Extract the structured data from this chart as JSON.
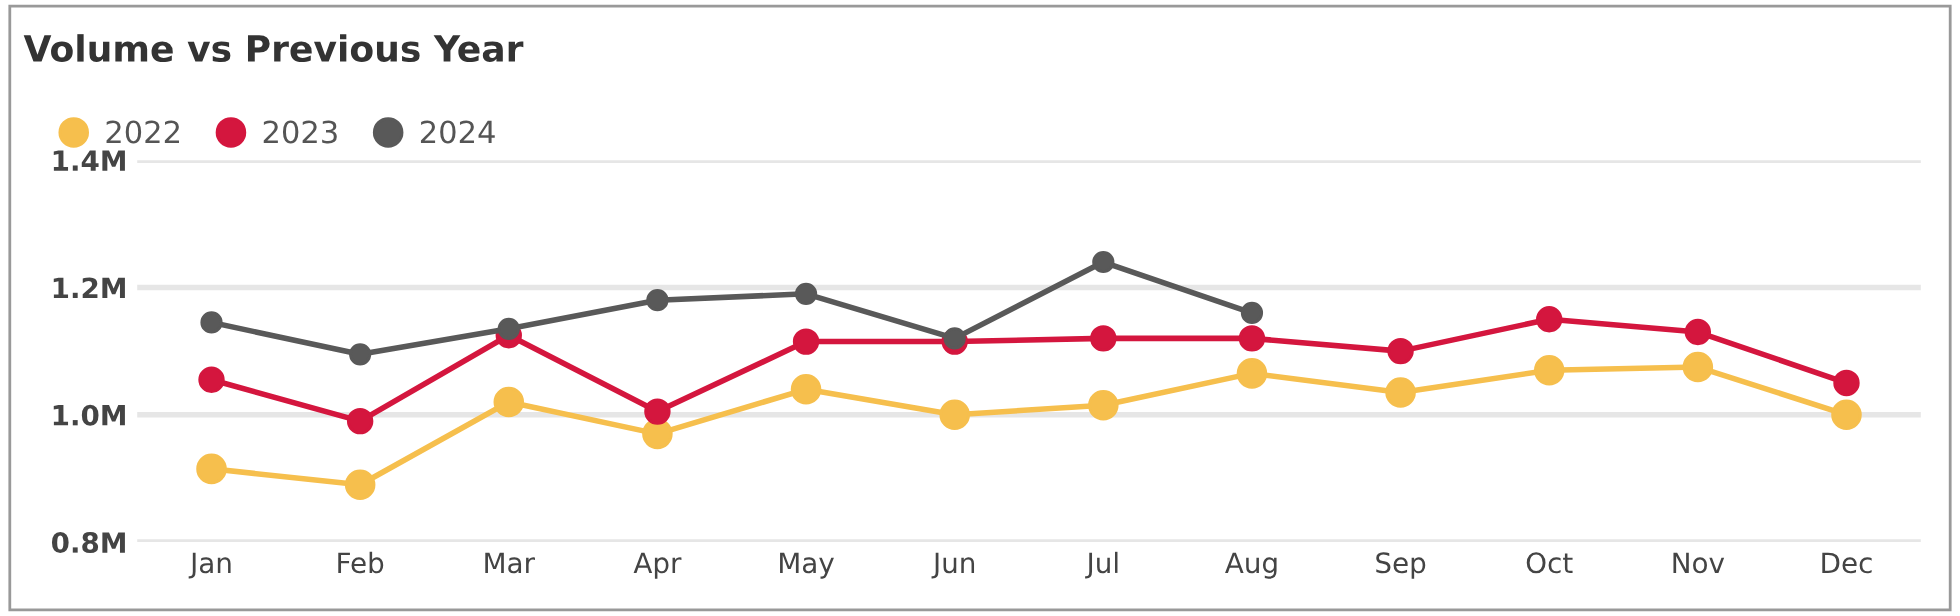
{
  "chart_data": {
    "type": "line",
    "title": "Volume vs Previous Year",
    "categories": [
      "Jan",
      "Feb",
      "Mar",
      "Apr",
      "May",
      "Jun",
      "Jul",
      "Aug",
      "Sep",
      "Oct",
      "Nov",
      "Dec"
    ],
    "series": [
      {
        "name": "2022",
        "color": "#f6bf4d",
        "values": [
          0.915,
          0.89,
          1.02,
          0.97,
          1.04,
          1.0,
          1.015,
          1.065,
          1.035,
          1.07,
          1.075,
          1.0
        ]
      },
      {
        "name": "2023",
        "color": "#d4163e",
        "values": [
          1.055,
          0.99,
          1.125,
          1.005,
          1.115,
          1.115,
          1.12,
          1.12,
          1.1,
          1.15,
          1.13,
          1.05
        ]
      },
      {
        "name": "2024",
        "color": "#595959",
        "values": [
          1.145,
          1.095,
          1.135,
          1.18,
          1.19,
          1.12,
          1.24,
          1.16,
          null,
          null,
          null,
          null
        ]
      }
    ],
    "ylim": [
      0.8,
      1.4
    ],
    "yticks": [
      {
        "value": 0.8,
        "label": "0.8M"
      },
      {
        "value": 1.0,
        "label": "1.0M"
      },
      {
        "value": 1.2,
        "label": "1.2M"
      },
      {
        "value": 1.4,
        "label": "1.4M"
      }
    ],
    "grid": "y",
    "legend": "top left",
    "marker": "circle",
    "line_style": "solid"
  }
}
